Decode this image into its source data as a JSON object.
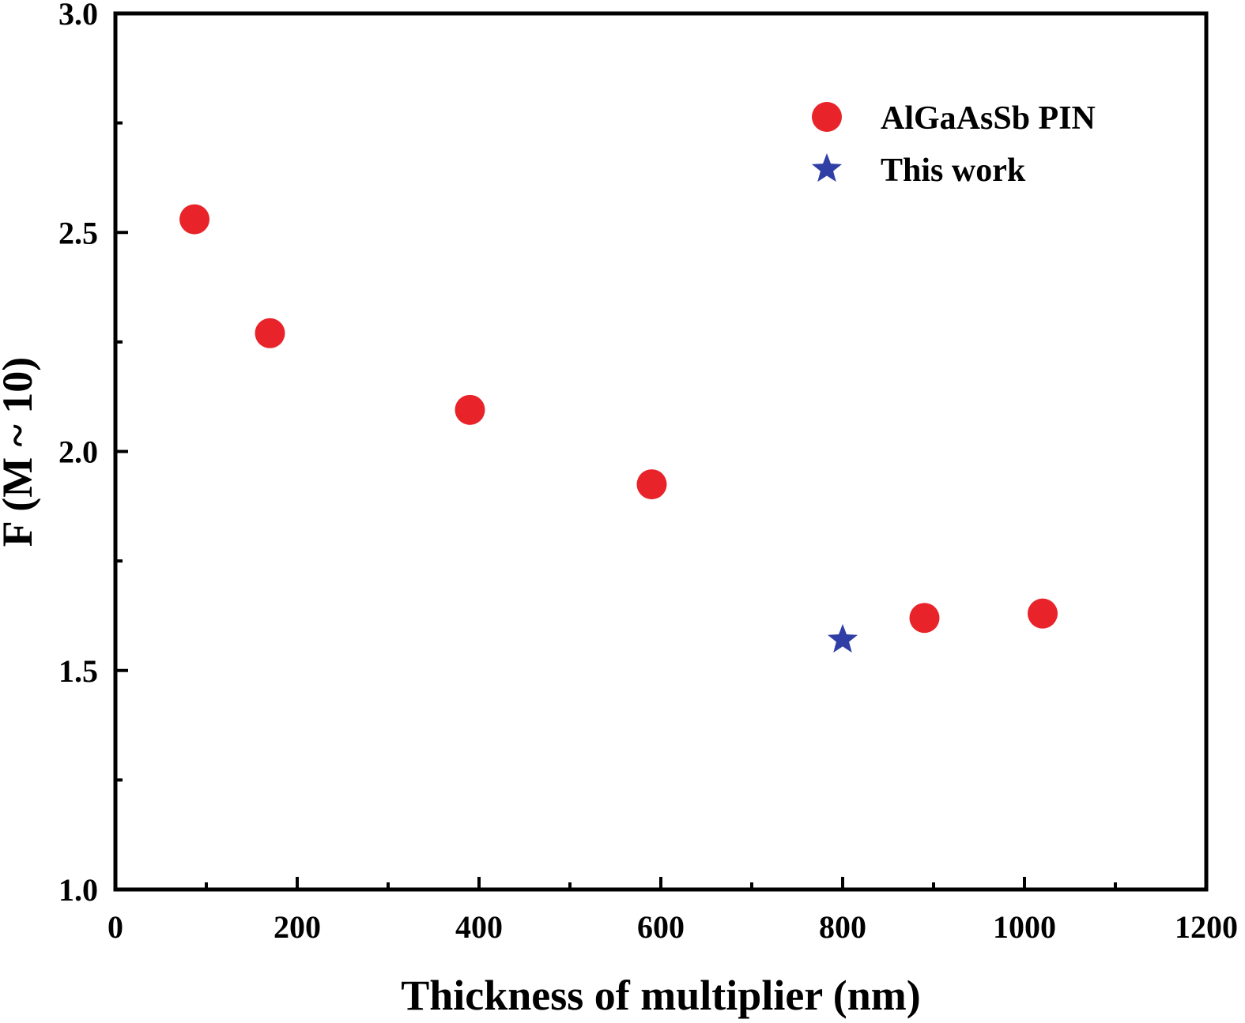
{
  "chart_data": {
    "type": "scatter",
    "title": "",
    "xlabel": "Thickness of multiplier (nm)",
    "ylabel": "F (M ~ 10)",
    "xlim": [
      0,
      1200
    ],
    "ylim": [
      1.0,
      3.0
    ],
    "x_ticks": [
      "0",
      "200",
      "400",
      "600",
      "800",
      "1000",
      "1200"
    ],
    "y_ticks": [
      "1.0",
      "1.5",
      "2.0",
      "2.5",
      "3.0"
    ],
    "grid": false,
    "legend_position": "top-right",
    "series": [
      {
        "name": "AlGaAsSb PIN",
        "marker": "circle",
        "color": "#e8232a",
        "points": [
          {
            "x": 87,
            "y": 2.53
          },
          {
            "x": 170,
            "y": 2.27
          },
          {
            "x": 390,
            "y": 2.095
          },
          {
            "x": 590,
            "y": 1.925
          },
          {
            "x": 890,
            "y": 1.62
          },
          {
            "x": 1020,
            "y": 1.63
          }
        ]
      },
      {
        "name": "This work",
        "marker": "star",
        "color": "#2f3fa6",
        "points": [
          {
            "x": 800,
            "y": 1.57
          }
        ]
      }
    ]
  }
}
